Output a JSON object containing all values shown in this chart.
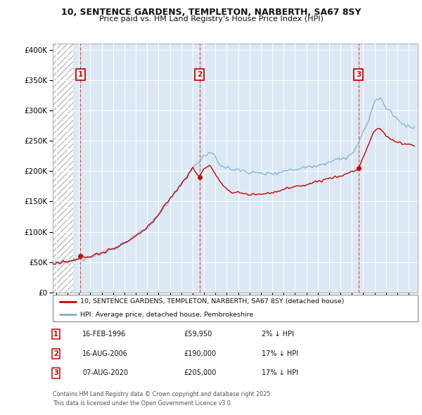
{
  "title_line1": "10, SENTENCE GARDENS, TEMPLETON, NARBERTH, SA67 8SY",
  "title_line2": "Price paid vs. HM Land Registry's House Price Index (HPI)",
  "background_color": "#dce9f5",
  "plot_bg_color": "#dce9f5",
  "hatch_area_end_year": 1995.5,
  "grid_color": "#ffffff",
  "sales": [
    {
      "date_num": 1996.12,
      "price": 59950,
      "label": "1",
      "date_str": "16-FEB-1996",
      "pct": "2%"
    },
    {
      "date_num": 2006.62,
      "price": 190000,
      "label": "2",
      "date_str": "16-AUG-2006",
      "pct": "17%"
    },
    {
      "date_num": 2020.6,
      "price": 205000,
      "label": "3",
      "date_str": "07-AUG-2020",
      "pct": "17%"
    }
  ],
  "hpi_line_color": "#7ab0d4",
  "price_line_color": "#cc0000",
  "sale_dot_color": "#cc0000",
  "vline_color": "#ee4444",
  "label_box_color": "#cc0000",
  "ylim": [
    0,
    410000
  ],
  "xlim_start": 1993.7,
  "xlim_end": 2025.8,
  "yticks": [
    0,
    50000,
    100000,
    150000,
    200000,
    250000,
    300000,
    350000,
    400000
  ],
  "ytick_labels": [
    "£0",
    "£50K",
    "£100K",
    "£150K",
    "£200K",
    "£250K",
    "£300K",
    "£350K",
    "£400K"
  ],
  "xticks": [
    1994,
    1995,
    1996,
    1997,
    1998,
    1999,
    2000,
    2001,
    2002,
    2003,
    2004,
    2005,
    2006,
    2007,
    2008,
    2009,
    2010,
    2011,
    2012,
    2013,
    2014,
    2015,
    2016,
    2017,
    2018,
    2019,
    2020,
    2021,
    2022,
    2023,
    2024,
    2025
  ],
  "legend_label_red": "10, SENTENCE GARDENS, TEMPLETON, NARBERTH, SA67 8SY (detached house)",
  "legend_label_blue": "HPI: Average price, detached house, Pembrokeshire",
  "footer_text": "Contains HM Land Registry data © Crown copyright and database right 2025.\nThis data is licensed under the Open Government Licence v3.0.",
  "table_rows": [
    [
      "1",
      "16-FEB-1996",
      "£59,950",
      "2% ↓ HPI"
    ],
    [
      "2",
      "16-AUG-2006",
      "£190,000",
      "17% ↓ HPI"
    ],
    [
      "3",
      "07-AUG-2020",
      "£205,000",
      "17% ↓ HPI"
    ]
  ],
  "hpi_anchors_x": [
    1993.7,
    1994.5,
    1995.5,
    1996.0,
    1997.0,
    1998.0,
    1999.0,
    2000.0,
    2001.0,
    2002.0,
    2003.0,
    2004.0,
    2005.0,
    2006.0,
    2006.5,
    2007.0,
    2007.5,
    2008.0,
    2008.5,
    2009.0,
    2009.5,
    2010.0,
    2010.5,
    2011.0,
    2011.5,
    2012.0,
    2012.5,
    2013.0,
    2013.5,
    2014.0,
    2015.0,
    2016.0,
    2017.0,
    2018.0,
    2019.0,
    2019.5,
    2020.0,
    2020.5,
    2021.0,
    2021.5,
    2022.0,
    2022.5,
    2023.0,
    2023.5,
    2024.0,
    2024.5,
    2025.5
  ],
  "hpi_anchors_y": [
    47000,
    49000,
    52000,
    55000,
    60000,
    65000,
    72000,
    82000,
    93000,
    107000,
    128000,
    155000,
    178000,
    205000,
    215000,
    225000,
    230000,
    222000,
    210000,
    205000,
    203000,
    202000,
    200000,
    199000,
    197000,
    196000,
    196000,
    197000,
    198000,
    200000,
    203000,
    207000,
    210000,
    215000,
    220000,
    222000,
    228000,
    240000,
    265000,
    285000,
    315000,
    320000,
    305000,
    295000,
    285000,
    278000,
    270000
  ],
  "price_anchors_x": [
    1993.7,
    1994.5,
    1995.5,
    1996.0,
    1996.12,
    1997.0,
    1998.0,
    1999.0,
    2000.0,
    2001.0,
    2002.0,
    2003.0,
    2004.0,
    2005.0,
    2006.0,
    2006.62,
    2007.0,
    2007.5,
    2008.0,
    2008.5,
    2009.0,
    2009.5,
    2010.0,
    2010.5,
    2011.0,
    2011.5,
    2012.0,
    2012.5,
    2013.0,
    2013.5,
    2014.0,
    2015.0,
    2016.0,
    2017.0,
    2018.0,
    2019.0,
    2019.5,
    2020.0,
    2020.5,
    2020.6,
    2021.0,
    2021.5,
    2022.0,
    2022.5,
    2023.0,
    2023.5,
    2024.0,
    2024.5,
    2025.5
  ],
  "price_anchors_y": [
    47000,
    49000,
    52000,
    55000,
    59950,
    60000,
    65000,
    72000,
    82000,
    93000,
    107000,
    128000,
    155000,
    178000,
    205000,
    190000,
    205000,
    210000,
    195000,
    180000,
    168000,
    165000,
    166000,
    163000,
    161000,
    162000,
    162000,
    163000,
    165000,
    167000,
    170000,
    174000,
    178000,
    183000,
    188000,
    192000,
    195000,
    200000,
    202000,
    205000,
    222000,
    245000,
    268000,
    270000,
    258000,
    252000,
    248000,
    245000,
    242000
  ]
}
